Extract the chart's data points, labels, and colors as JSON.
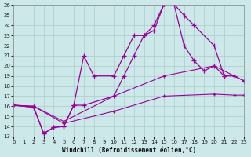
{
  "xlabel": "Windchill (Refroidissement éolien,°C)",
  "bg_color": "#cce8e8",
  "grid_color": "#aacccc",
  "line_color": "#990099",
  "xmin": 0,
  "xmax": 23,
  "ymin": 13,
  "ymax": 26,
  "lines": [
    {
      "x": [
        0,
        2,
        3,
        4,
        5,
        6,
        7,
        8,
        10,
        11,
        12,
        13,
        14,
        15,
        16,
        17,
        18,
        20,
        21
      ],
      "y": [
        16.1,
        15.9,
        13.3,
        13.9,
        14.0,
        16.1,
        21.0,
        19.0,
        19.0,
        21.0,
        23.0,
        23.0,
        24.0,
        26.1,
        26.1,
        25.0,
        24.0,
        22.0,
        19.0
      ]
    },
    {
      "x": [
        0,
        2,
        3,
        4,
        5,
        6,
        7,
        10,
        11,
        12,
        13,
        14,
        15,
        16,
        17,
        18,
        19,
        20,
        21,
        22,
        23
      ],
      "y": [
        16.1,
        15.9,
        13.3,
        13.9,
        14.0,
        16.1,
        16.1,
        17.0,
        19.0,
        21.0,
        23.0,
        23.5,
        26.1,
        26.1,
        22.0,
        20.5,
        19.5,
        20.0,
        19.0,
        19.0,
        18.5
      ]
    },
    {
      "x": [
        0,
        2,
        5,
        10,
        15,
        20,
        22,
        23
      ],
      "y": [
        16.1,
        16.0,
        14.5,
        17.0,
        19.0,
        20.0,
        19.0,
        18.5
      ]
    },
    {
      "x": [
        0,
        2,
        5,
        10,
        15,
        20,
        22,
        23
      ],
      "y": [
        16.1,
        16.0,
        14.3,
        15.5,
        17.0,
        17.2,
        17.1,
        17.1
      ]
    }
  ]
}
